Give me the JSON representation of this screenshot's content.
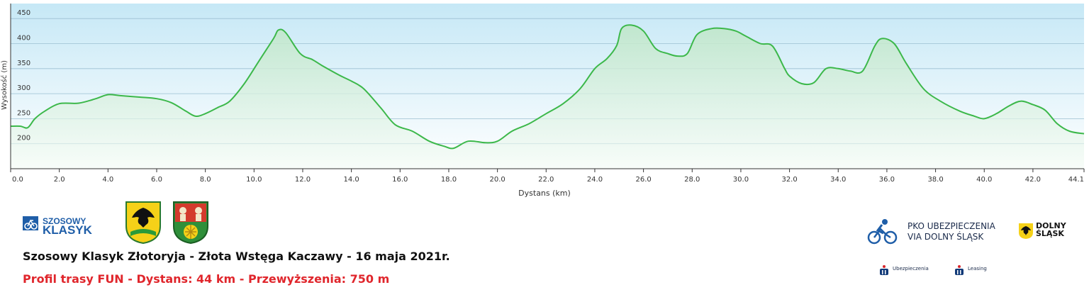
{
  "chart_data": {
    "type": "area",
    "xlabel": "Dystans (km)",
    "ylabel": "Wysokość (m)",
    "xlim": [
      0,
      44.1
    ],
    "ylim": [
      150,
      480
    ],
    "x_tick_labels": [
      "0.0",
      "2.0",
      "4.0",
      "6.0",
      "8.0",
      "10.0",
      "12.0",
      "14.0",
      "16.0",
      "18.0",
      "20.0",
      "22.0",
      "24.0",
      "26.0",
      "28.0",
      "30.0",
      "32.0",
      "34.0",
      "36.0",
      "38.0",
      "40.0",
      "42.0",
      "44.1"
    ],
    "y_tick_labels": [
      "200",
      "250",
      "300",
      "350",
      "400",
      "450"
    ],
    "grid": true,
    "series": [
      {
        "x": [
          0,
          0.4,
          0.7,
          1.0,
          1.4,
          2.0,
          2.8,
          3.5,
          4.0,
          4.5,
          5.3,
          6.0,
          6.6,
          7.2,
          7.6,
          8.0,
          8.5,
          9.0,
          9.6,
          10.2,
          10.8,
          11.0,
          11.3,
          11.9,
          12.4,
          12.8,
          13.5,
          14.0,
          14.5,
          15.2,
          15.8,
          16.5,
          17.2,
          17.8,
          18.2,
          18.8,
          19.5,
          20.0,
          20.6,
          21.3,
          22.0,
          22.7,
          23.4,
          24.0,
          24.5,
          24.9,
          25.1,
          25.5,
          26.0,
          26.5,
          27.0,
          27.4,
          27.8,
          28.2,
          28.8,
          29.3,
          29.8,
          30.2,
          30.8,
          31.3,
          31.8,
          32.0,
          32.5,
          33.0,
          33.5,
          34.0,
          34.5,
          35.0,
          35.5,
          35.8,
          36.3,
          36.8,
          37.5,
          38.2,
          39.0,
          39.6,
          40.0,
          40.5,
          41.0,
          41.5,
          42.0,
          42.5,
          43.0,
          43.5,
          44.1
        ],
        "y": [
          235,
          235,
          232,
          250,
          265,
          280,
          281,
          290,
          298,
          296,
          293,
          290,
          282,
          265,
          255,
          260,
          272,
          285,
          320,
          365,
          410,
          427,
          422,
          380,
          368,
          356,
          337,
          325,
          310,
          272,
          238,
          225,
          205,
          195,
          191,
          205,
          202,
          205,
          225,
          240,
          260,
          280,
          310,
          350,
          370,
          396,
          430,
          437,
          425,
          390,
          380,
          375,
          380,
          418,
          430,
          430,
          425,
          415,
          400,
          395,
          350,
          335,
          320,
          322,
          350,
          350,
          345,
          345,
          395,
          410,
          400,
          360,
          310,
          285,
          265,
          255,
          250,
          260,
          275,
          285,
          278,
          267,
          240,
          225,
          220
        ]
      }
    ]
  },
  "footer": {
    "title": "Szosowy Klasyk Złotoryja - Złota Wstęga Kaczawy - 16 maja 2021r.",
    "route_info": "Profil trasy FUN - Dystans: 44 km - Przewyższenia: 750 m",
    "logo_szosowy_line1": "SZOSOWY",
    "logo_szosowy_line2": "KLASYK",
    "pko_line1": "PKO UBEZPIECZENIA",
    "pko_line2": "VIA DOLNY ŚLĄSK",
    "dolny_line1": "DOLNY",
    "dolny_line2": "ŚLĄSK",
    "ubezpieczenia_label": "Ubezpieczenia",
    "leasing_label": "Leasing"
  },
  "colors": {
    "line": "#3cb84a",
    "fill_top": "#c9ead4",
    "plot_bg_top": "#c9e9f6",
    "plot_bg_bottom": "#ffffff",
    "grid": "#8fb6cc",
    "accent_red": "#e0262c",
    "brand_blue": "#1f5ea8"
  }
}
